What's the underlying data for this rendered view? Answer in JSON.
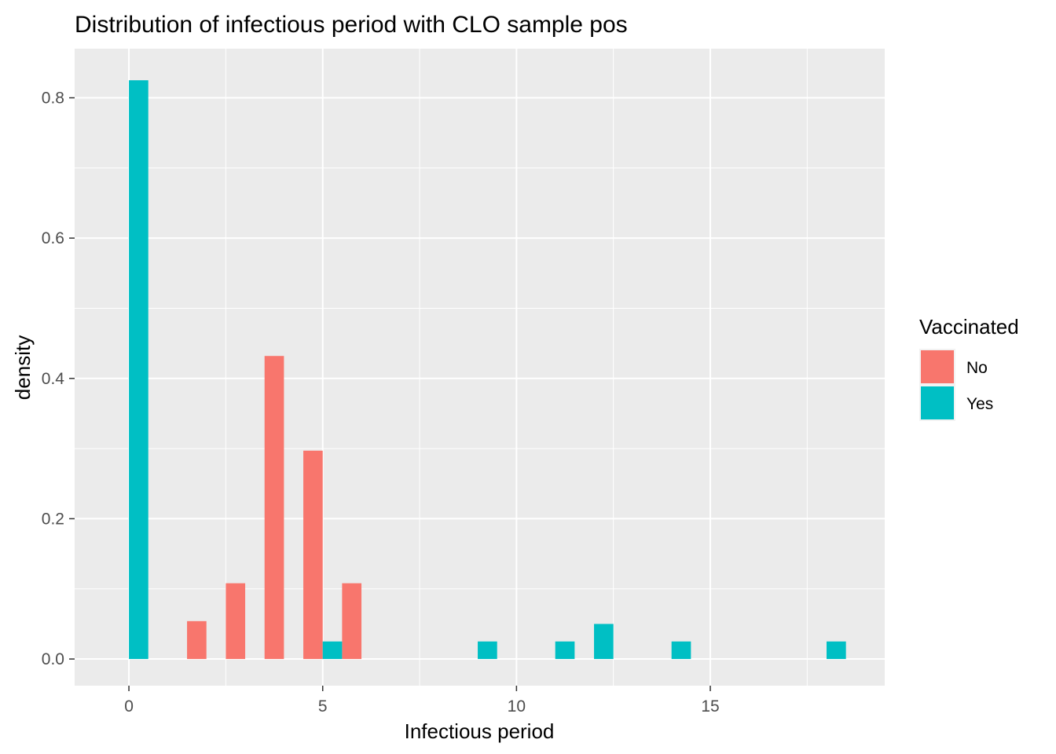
{
  "chart_data": {
    "type": "bar",
    "title": "Distribution of infectious period with CLO sample pos",
    "xlabel": "Infectious period",
    "ylabel": "density",
    "xlim": [
      -1.4,
      19.5
    ],
    "ylim": [
      -0.038,
      0.87
    ],
    "x_ticks": [
      0,
      5,
      10,
      15
    ],
    "x_tick_labels": [
      "0",
      "5",
      "10",
      "15"
    ],
    "y_ticks": [
      0.0,
      0.2,
      0.4,
      0.6,
      0.8
    ],
    "y_tick_labels": [
      "0.0",
      "0.2",
      "0.4",
      "0.6",
      "0.8"
    ],
    "bar_width": 0.5,
    "grid": true,
    "legend": {
      "title": "Vaccinated",
      "position": "right"
    },
    "series": [
      {
        "name": "No",
        "color": "#F8766D",
        "points": [
          {
            "x": 1.75,
            "y": 0.054
          },
          {
            "x": 2.75,
            "y": 0.108
          },
          {
            "x": 3.75,
            "y": 0.432
          },
          {
            "x": 4.75,
            "y": 0.297
          },
          {
            "x": 5.75,
            "y": 0.108
          }
        ]
      },
      {
        "name": "Yes",
        "color": "#00BFC4",
        "points": [
          {
            "x": 0.25,
            "y": 0.825
          },
          {
            "x": 5.25,
            "y": 0.025
          },
          {
            "x": 9.25,
            "y": 0.025
          },
          {
            "x": 11.25,
            "y": 0.025
          },
          {
            "x": 12.25,
            "y": 0.05
          },
          {
            "x": 14.25,
            "y": 0.025
          },
          {
            "x": 18.25,
            "y": 0.025
          }
        ]
      }
    ]
  }
}
